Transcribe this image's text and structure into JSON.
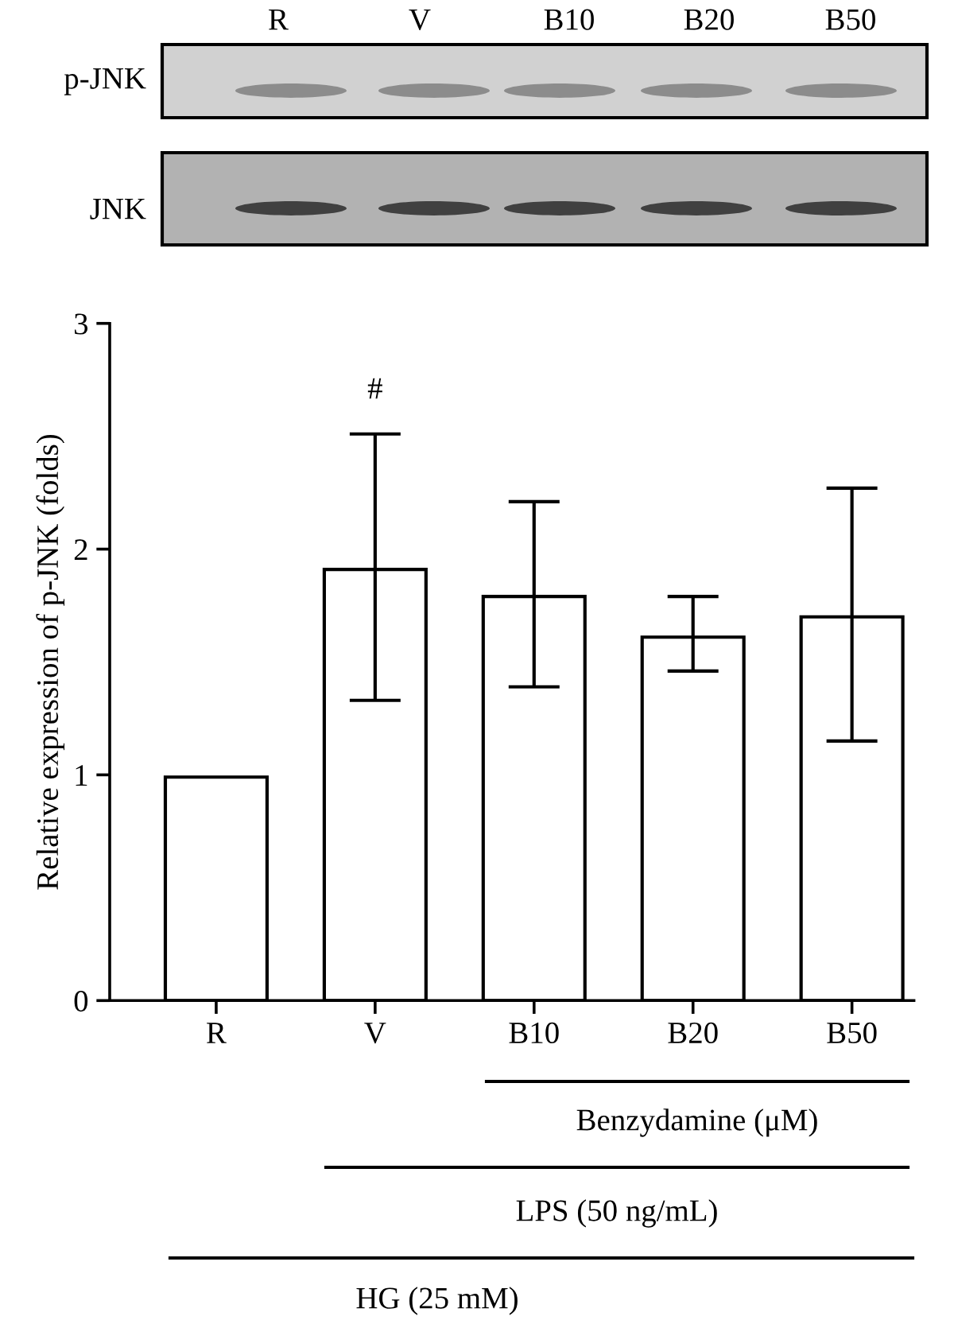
{
  "chart_data": {
    "type": "bar",
    "ylabel": "Relative expression of p-JNK (folds)",
    "categories": [
      "R",
      "V",
      "B10",
      "B20",
      "B50"
    ],
    "values": [
      0.99,
      1.91,
      1.79,
      1.61,
      1.7
    ],
    "errors": [
      null,
      [
        1.33,
        2.51
      ],
      [
        1.39,
        2.21
      ],
      [
        1.46,
        1.79
      ],
      [
        1.15,
        2.27
      ]
    ],
    "color": "#ffffff",
    "ylim": [
      0,
      3
    ],
    "yticks": [
      0,
      1,
      2,
      3
    ],
    "grid": false,
    "legend": false,
    "annotations": [
      "#",
      "R",
      "V",
      "B10",
      "B20",
      "B50",
      "p-JNK",
      "JNK",
      "Benzydamine (μM)",
      "LPS (50 ng/mL)",
      "HG (25 mM)"
    ]
  }
}
